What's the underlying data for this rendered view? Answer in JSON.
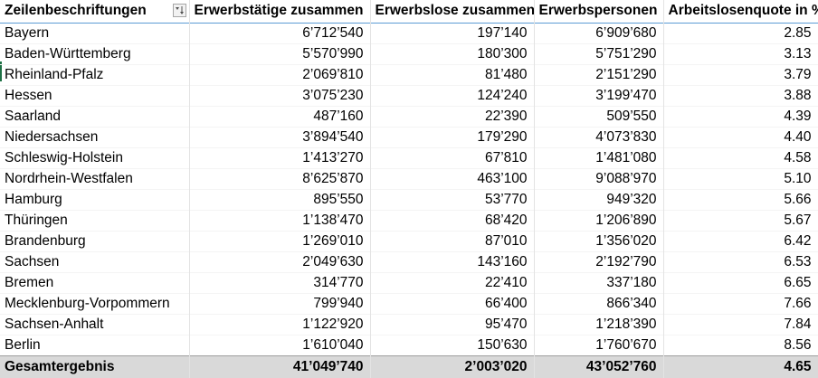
{
  "headers": {
    "row_labels": "Zeilenbeschriftungen",
    "col1": "Erwerbstätige zusammen",
    "col2": "Erwerbslose zusammen",
    "col3": "Erwerbspersonen",
    "col4": "Arbeitslosenquote in %"
  },
  "rows": [
    {
      "label": "Bayern",
      "c1": "6’712’540",
      "c2": "197’140",
      "c3": "6’909’680",
      "c4": "2.85"
    },
    {
      "label": "Baden-Württemberg",
      "c1": "5’570’990",
      "c2": "180’300",
      "c3": "5’751’290",
      "c4": "3.13"
    },
    {
      "label": "Rheinland-Pfalz",
      "c1": "2’069’810",
      "c2": "81’480",
      "c3": "2’151’290",
      "c4": "3.79"
    },
    {
      "label": "Hessen",
      "c1": "3’075’230",
      "c2": "124’240",
      "c3": "3’199’470",
      "c4": "3.88"
    },
    {
      "label": "Saarland",
      "c1": "487’160",
      "c2": "22’390",
      "c3": "509’550",
      "c4": "4.39"
    },
    {
      "label": "Niedersachsen",
      "c1": "3’894’540",
      "c2": "179’290",
      "c3": "4’073’830",
      "c4": "4.40"
    },
    {
      "label": "Schleswig-Holstein",
      "c1": "1’413’270",
      "c2": "67’810",
      "c3": "1’481’080",
      "c4": "4.58"
    },
    {
      "label": "Nordrhein-Westfalen",
      "c1": "8’625’870",
      "c2": "463’100",
      "c3": "9’088’970",
      "c4": "5.10"
    },
    {
      "label": "Hamburg",
      "c1": "895’550",
      "c2": "53’770",
      "c3": "949’320",
      "c4": "5.66"
    },
    {
      "label": "Thüringen",
      "c1": "1’138’470",
      "c2": "68’420",
      "c3": "1’206’890",
      "c4": "5.67"
    },
    {
      "label": "Brandenburg",
      "c1": "1’269’010",
      "c2": "87’010",
      "c3": "1’356’020",
      "c4": "6.42"
    },
    {
      "label": "Sachsen",
      "c1": "2’049’630",
      "c2": "143’160",
      "c3": "2’192’790",
      "c4": "6.53"
    },
    {
      "label": "Bremen",
      "c1": "314’770",
      "c2": "22’410",
      "c3": "337’180",
      "c4": "6.65"
    },
    {
      "label": "Mecklenburg-Vorpommern",
      "c1": "799’940",
      "c2": "66’400",
      "c3": "866’340",
      "c4": "7.66"
    },
    {
      "label": "Sachsen-Anhalt",
      "c1": "1’122’920",
      "c2": "95’470",
      "c3": "1’218’390",
      "c4": "7.84"
    },
    {
      "label": "Berlin",
      "c1": "1’610’040",
      "c2": "150’630",
      "c3": "1’760’670",
      "c4": "8.56"
    }
  ],
  "total": {
    "label": "Gesamtergebnis",
    "c1": "41’049’740",
    "c2": "2’003’020",
    "c3": "43’052’760",
    "c4": "4.65"
  },
  "icons": {
    "filter": "sort-filter-icon"
  },
  "colors": {
    "header_underline": "#5b9bd5",
    "total_background": "#d9d9d9"
  }
}
